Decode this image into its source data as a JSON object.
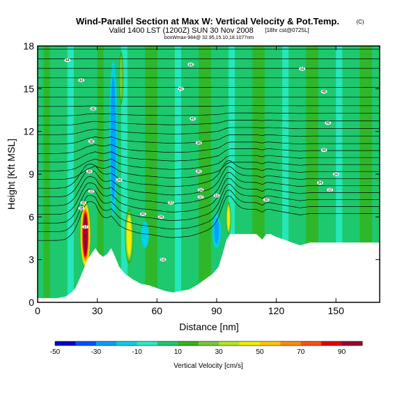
{
  "chart_data": {
    "type": "heatmap",
    "title": "Wind-Parallel Section at Max W: Vertical Velocity & Pot.Temp.",
    "title_mark": "(C)",
    "subtitle": "Valid 1400 LST (1200Z) SUN 30 Nov 2008",
    "subtitle_tag": "[18hr cst@0725L]",
    "subtitle2": "boxWmax-984@ 32.95,15.10,18.1077nm",
    "xlabel": "Distance [nm]",
    "ylabel": "Height [Kft MSL]",
    "xlim": [
      0,
      172
    ],
    "ylim": [
      0,
      18
    ],
    "x_ticks": [
      0,
      30,
      60,
      90,
      120,
      150
    ],
    "y_ticks": [
      0,
      3,
      6,
      9,
      12,
      15,
      18
    ],
    "colorbar": {
      "label": "Vertical Velocity [cm/s]",
      "tick_labels": [
        "-50",
        "-30",
        "-10",
        "10",
        "30",
        "50",
        "70",
        "90"
      ],
      "tick_values": [
        -50,
        -30,
        -10,
        10,
        30,
        50,
        70,
        90
      ],
      "bounds": [
        -50,
        -40,
        -30,
        -20,
        -10,
        0,
        10,
        20,
        30,
        40,
        50,
        60,
        70,
        80,
        90,
        100
      ],
      "colors": [
        "#0000c8",
        "#0050ff",
        "#00a0ff",
        "#00d2e6",
        "#28ecc8",
        "#1ec86e",
        "#32b41e",
        "#78c83c",
        "#b4e628",
        "#f0f000",
        "#ffc800",
        "#ff8c00",
        "#ff5000",
        "#e60000",
        "#a00032"
      ]
    },
    "terrain_kft": [
      [
        0,
        0.3
      ],
      [
        5,
        0.3
      ],
      [
        10,
        0.3
      ],
      [
        14,
        0.4
      ],
      [
        17,
        0.7
      ],
      [
        19,
        1.0
      ],
      [
        21,
        1.6
      ],
      [
        23,
        2.3
      ],
      [
        25,
        3.0
      ],
      [
        27,
        3.4
      ],
      [
        29,
        3.8
      ],
      [
        31,
        3.4
      ],
      [
        33,
        3.2
      ],
      [
        35,
        3.4
      ],
      [
        37,
        3.8
      ],
      [
        39,
        3.2
      ],
      [
        41,
        2.5
      ],
      [
        44,
        2.0
      ],
      [
        48,
        1.6
      ],
      [
        52,
        1.3
      ],
      [
        56,
        1.2
      ],
      [
        60,
        1.0
      ],
      [
        64,
        0.8
      ],
      [
        68,
        0.7
      ],
      [
        72,
        0.8
      ],
      [
        76,
        0.9
      ],
      [
        80,
        1.2
      ],
      [
        84,
        1.6
      ],
      [
        88,
        2.0
      ],
      [
        91,
        2.5
      ],
      [
        93,
        3.4
      ],
      [
        95,
        4.4
      ],
      [
        97,
        4.8
      ],
      [
        102,
        4.8
      ],
      [
        106,
        4.8
      ],
      [
        110,
        4.8
      ],
      [
        113,
        4.4
      ],
      [
        115,
        4.8
      ],
      [
        117,
        4.8
      ],
      [
        120,
        4.6
      ],
      [
        124,
        4.4
      ],
      [
        128,
        4.2
      ],
      [
        132,
        4.0
      ],
      [
        137,
        4.2
      ],
      [
        150,
        4.2
      ],
      [
        172,
        4.2
      ]
    ],
    "updrafts": [
      {
        "x": 24,
        "h0": 2.2,
        "h1": 7.3,
        "halfwidth": 3.0,
        "peak_cms": 92
      },
      {
        "x": 46,
        "h0": 2.5,
        "h1": 6.8,
        "halfwidth": 2.5,
        "peak_cms": 45
      },
      {
        "x": 96,
        "h0": 4.6,
        "h1": 7.2,
        "halfwidth": 1.5,
        "peak_cms": 42
      },
      {
        "x": 42,
        "h0": 13.5,
        "h1": 18.0,
        "halfwidth": 1.5,
        "peak_cms": 28
      }
    ],
    "downdrafts": [
      {
        "x": 38,
        "h0": 5.0,
        "h1": 18.0,
        "halfwidth": 2.5,
        "peak_cms": -28
      },
      {
        "x": 54,
        "h0": 3.5,
        "h1": 6.0,
        "halfwidth": 3.0,
        "peak_cms": -18
      },
      {
        "x": 90,
        "h0": 3.5,
        "h1": 6.5,
        "halfwidth": 3.0,
        "peak_cms": -22
      }
    ],
    "contour_labels": [
      {
        "text": "44",
        "x": 15,
        "y": 17.0
      },
      {
        "text": "42",
        "x": 22,
        "y": 15.6
      },
      {
        "text": "40",
        "x": 28,
        "y": 13.6
      },
      {
        "text": "38",
        "x": 27,
        "y": 11.3
      },
      {
        "text": "36",
        "x": 26,
        "y": 9.2
      },
      {
        "text": "34",
        "x": 41,
        "y": 8.6
      },
      {
        "text": "32",
        "x": 27,
        "y": 7.8
      },
      {
        "text": "30",
        "x": 23,
        "y": 7.0
      },
      {
        "text": "28",
        "x": 22,
        "y": 6.6
      },
      {
        "text": "26",
        "x": 53,
        "y": 6.2
      },
      {
        "text": "24",
        "x": 62,
        "y": 6.0
      },
      {
        "text": "22",
        "x": 24,
        "y": 5.3
      },
      {
        "text": "20",
        "x": 67,
        "y": 7.0
      },
      {
        "text": "18",
        "x": 90,
        "y": 7.5
      },
      {
        "text": "14",
        "x": 63,
        "y": 3.0
      },
      {
        "text": "44",
        "x": 77,
        "y": 16.7
      },
      {
        "text": "44",
        "x": 133,
        "y": 16.4
      },
      {
        "text": "42",
        "x": 72,
        "y": 15.0
      },
      {
        "text": "40",
        "x": 78,
        "y": 12.9
      },
      {
        "text": "38",
        "x": 81,
        "y": 11.2
      },
      {
        "text": "36",
        "x": 81,
        "y": 9.2
      },
      {
        "text": "34",
        "x": 82,
        "y": 7.9
      },
      {
        "text": "32",
        "x": 82,
        "y": 7.4
      },
      {
        "text": "48",
        "x": 144,
        "y": 14.8
      },
      {
        "text": "46",
        "x": 146,
        "y": 12.6
      },
      {
        "text": "44",
        "x": 144,
        "y": 10.7
      },
      {
        "text": "34",
        "x": 150,
        "y": 9.0
      },
      {
        "text": "34",
        "x": 142,
        "y": 8.4
      },
      {
        "text": "32",
        "x": 147,
        "y": 7.9
      },
      {
        "text": "30",
        "x": 115,
        "y": 7.2
      }
    ]
  }
}
